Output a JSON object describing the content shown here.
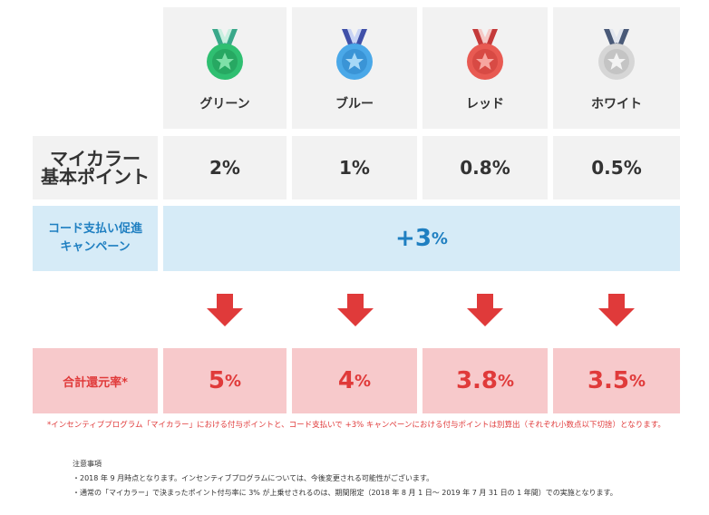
{
  "ranks": [
    {
      "name": "グリーン",
      "medal_color": "#2fbf71",
      "ribbon": "#3aa88a",
      "base": "2%",
      "total_num": "5",
      "icon": "green-medal-icon"
    },
    {
      "name": "ブルー",
      "medal_color": "#4aa8e8",
      "ribbon": "#4050a8",
      "base": "1%",
      "total_num": "4",
      "icon": "blue-medal-icon"
    },
    {
      "name": "レッド",
      "medal_color": "#e85a52",
      "ribbon": "#c43a3a",
      "base": "0.8%",
      "total_num": "3.8",
      "icon": "red-medal-icon"
    },
    {
      "name": "ホワイト",
      "medal_color": "#d6d6d6",
      "ribbon": "#4a5a78",
      "base": "0.5%",
      "total_num": "3.5",
      "icon": "white-medal-icon"
    }
  ],
  "labels": {
    "base_line1": "マイカラー",
    "base_line2": "基本ポイント",
    "promo_line1": "コード支払い促進",
    "promo_line2": "キャンペーン",
    "promo_value_num": "+3",
    "percent": "%",
    "total_label": "合計還元率*"
  },
  "footnote": "*インセンティブプログラム「マイカラー」における付与ポイントと、コード支払いで +3% キャンペーンにおける付与ポイントは別算出（それぞれ小数点以下切捨）となります。",
  "notes": {
    "title": "注意事項",
    "items": [
      "・2018 年 9 月時点となります。インセンティブプログラムについては、今後変更される可能性がございます。",
      "・通常の「マイカラー」で決まったポイント付与率に 3% が上乗せされるのは、期間限定（2018 年 8 月 1 日〜 2019 年 7 月 31 日の 1 年間）での実施となります。"
    ]
  },
  "colors": {
    "gray_cell": "#f2f2f2",
    "promo_bg": "#d6ebf7",
    "promo_text": "#1f7fc1",
    "total_bg": "#f7c9cb",
    "accent_red": "#e03a3a"
  }
}
